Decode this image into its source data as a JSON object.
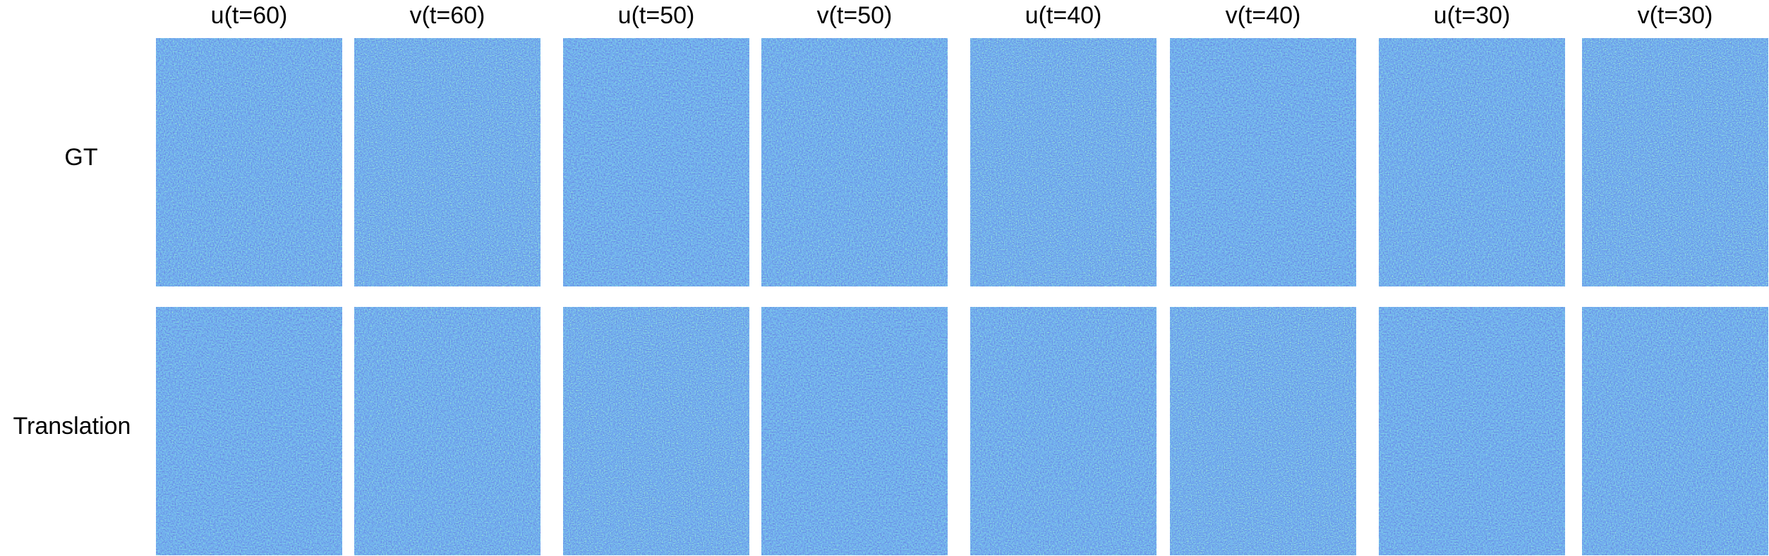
{
  "columns": [
    "u(t=60)",
    "v(t=60)",
    "u(t=50)",
    "v(t=50)",
    "u(t=40)",
    "v(t=40)",
    "u(t=30)",
    "v(t=30)"
  ],
  "rows": [
    "GT",
    "Translation"
  ]
}
